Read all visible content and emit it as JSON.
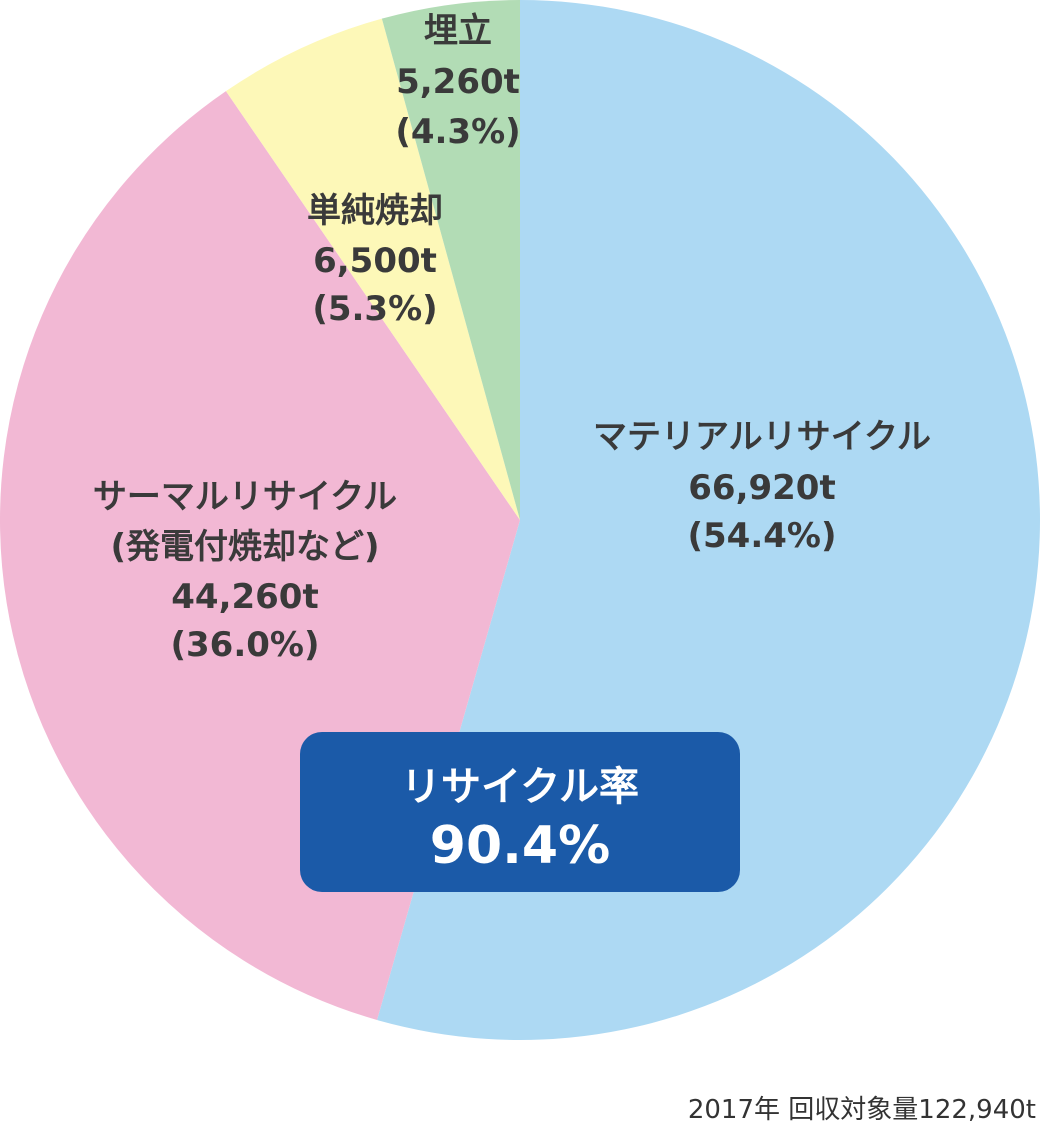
{
  "chart_data": {
    "type": "pie",
    "slices": [
      {
        "label": "マテリアルリサイクル",
        "sublabel": "",
        "value": 66920,
        "value_text": "66,920t",
        "percent_text": "(54.4%)",
        "color": "#add9f3"
      },
      {
        "label": "サーマルリサイクル",
        "sublabel": "(発電付焼却など)",
        "value": 44260,
        "value_text": "44,260t",
        "percent_text": "(36.0%)",
        "color": "#f2b8d4"
      },
      {
        "label": "単純焼却",
        "sublabel": "",
        "value": 6500,
        "value_text": "6,500t",
        "percent_text": "(5.3%)",
        "color": "#fdf8b8"
      },
      {
        "label": "埋立",
        "sublabel": "",
        "value": 5260,
        "value_text": "5,260t",
        "percent_text": "(4.3%)",
        "color": "#b2dcb5"
      }
    ],
    "start_angle": "12 o'clock",
    "direction": "clockwise"
  },
  "badge": {
    "title": "リサイクル率",
    "value": "90.4%",
    "color": "#1b5aa8"
  },
  "footer": "2017年 回収対象量122,940t"
}
